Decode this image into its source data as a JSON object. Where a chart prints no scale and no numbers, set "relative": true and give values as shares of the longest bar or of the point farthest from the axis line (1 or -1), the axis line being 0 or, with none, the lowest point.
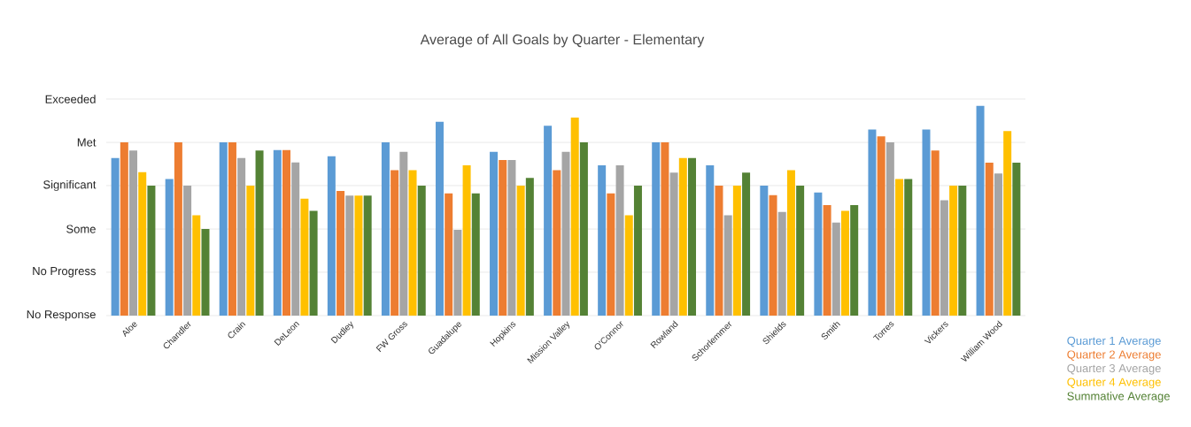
{
  "chart_data": {
    "type": "bar",
    "title": "Average of All Goals by Quarter - Elementary",
    "relative": true,
    "categories": [
      "Aloe",
      "Chandler",
      "Crain",
      "DeLeon",
      "Dudley",
      "FW Gross",
      "Guadalupe",
      "Hopkins",
      "Mission Valley",
      "O'Connor",
      "Rowland",
      "Schorlemmer",
      "Shields",
      "Smith",
      "Torres",
      "Vickers",
      "William Wood"
    ],
    "series": [
      {
        "name": "Quarter 1 Average",
        "color": "#5b9bd5",
        "values": [
          0.752,
          0.651,
          0.826,
          0.789,
          0.76,
          0.826,
          0.924,
          0.781,
          0.905,
          0.717,
          0.826,
          0.717,
          0.62,
          0.587,
          0.888,
          0.888,
          1
        ]
      },
      {
        "name": "Quarter 2 Average",
        "color": "#ed7d31",
        "values": [
          0.826,
          0.826,
          0.826,
          0.789,
          0.595,
          0.694,
          0.583,
          0.742,
          0.694,
          0.583,
          0.826,
          0.62,
          0.574,
          0.527,
          0.855,
          0.787,
          0.729
        ]
      },
      {
        "name": "Quarter 3 Average",
        "color": "#a5a5a5",
        "values": [
          0.787,
          0.62,
          0.752,
          0.731,
          0.572,
          0.781,
          0.409,
          0.742,
          0.781,
          0.717,
          0.682,
          0.479,
          0.494,
          0.444,
          0.826,
          0.55,
          0.678
        ]
      },
      {
        "name": "Quarter 4 Average",
        "color": "#ffc000",
        "values": [
          0.684,
          0.479,
          0.62,
          0.558,
          0.572,
          0.694,
          0.717,
          0.62,
          0.944,
          0.479,
          0.752,
          0.62,
          0.694,
          0.5,
          0.651,
          0.62,
          0.88
        ]
      },
      {
        "name": "Summative Average",
        "color": "#548235",
        "values": [
          0.62,
          0.413,
          0.787,
          0.5,
          0.572,
          0.62,
          0.583,
          0.657,
          0.826,
          0.62,
          0.752,
          0.682,
          0.62,
          0.527,
          0.651,
          0.62,
          0.729
        ]
      }
    ],
    "ref_lines": [
      {
        "axis": "y",
        "value": 0,
        "label": "No Response",
        "color": "#e3e3e3"
      },
      {
        "axis": "y",
        "value": 0.207,
        "label": "No Progress",
        "color": "#e3e3e3"
      },
      {
        "axis": "y",
        "value": 0.413,
        "label": "Some",
        "color": "#e3e3e3"
      },
      {
        "axis": "y",
        "value": 0.62,
        "label": "Significant",
        "color": "#e3e3e3"
      },
      {
        "axis": "y",
        "value": 0.826,
        "label": "Met",
        "color": "#e3e3e3"
      },
      {
        "axis": "y",
        "value": 1.033,
        "label": "Exceeded",
        "color": "#e3e3e3"
      }
    ],
    "legend": "bottom right"
  }
}
